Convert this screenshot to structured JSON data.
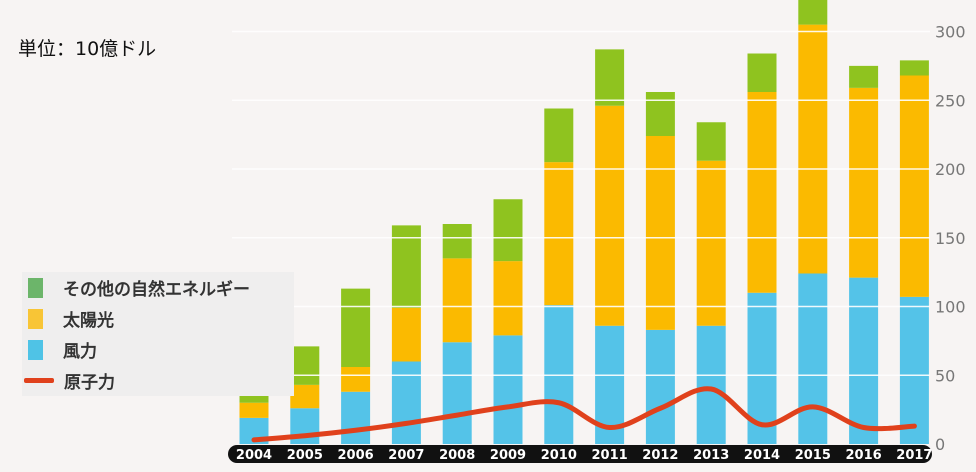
{
  "unit_label": "単位：10億ドル",
  "legend": [
    {
      "label": "その他の自然エネルギー",
      "color": "#6cb56a",
      "kind": "box"
    },
    {
      "label": "太陽光",
      "color": "#f8c536",
      "kind": "box"
    },
    {
      "label": "風力",
      "color": "#4fc3e6",
      "kind": "box"
    },
    {
      "label": "原子力",
      "color": "#e0411c",
      "kind": "line"
    }
  ],
  "colors": {
    "wind": "#54c3e8",
    "solar": "#fbba00",
    "other": "#8fc31f",
    "nuclear": "#e0411c",
    "axis_band": "#111111",
    "tick": "#777777"
  },
  "chart_data": {
    "type": "bar",
    "stacked": true,
    "categories": [
      "2004",
      "2005",
      "2006",
      "2007",
      "2008",
      "2009",
      "2010",
      "2011",
      "2012",
      "2013",
      "2014",
      "2015",
      "2016",
      "2017"
    ],
    "series": [
      {
        "name": "風力",
        "key": "wind",
        "values": [
          19,
          26,
          38,
          60,
          74,
          79,
          101,
          86,
          83,
          86,
          110,
          124,
          121,
          107
        ]
      },
      {
        "name": "太陽光",
        "key": "solar",
        "values": [
          11,
          17,
          18,
          39,
          61,
          54,
          104,
          160,
          141,
          120,
          146,
          181,
          138,
          161
        ]
      },
      {
        "name": "その他の自然エネルギー",
        "key": "other",
        "values": [
          17,
          28,
          57,
          60,
          25,
          45,
          39,
          41,
          32,
          28,
          28,
          19,
          16,
          11
        ]
      }
    ],
    "line_series": {
      "name": "原子力",
      "key": "nuclear",
      "values": [
        3,
        6,
        10,
        15,
        21,
        27,
        30,
        12,
        26,
        40,
        14,
        27,
        12,
        13
      ]
    },
    "y_ticks": [
      0,
      50,
      100,
      150,
      200,
      250,
      300
    ],
    "ylim": [
      0,
      320
    ],
    "y_axis_position": "right",
    "legend_position": "left"
  }
}
